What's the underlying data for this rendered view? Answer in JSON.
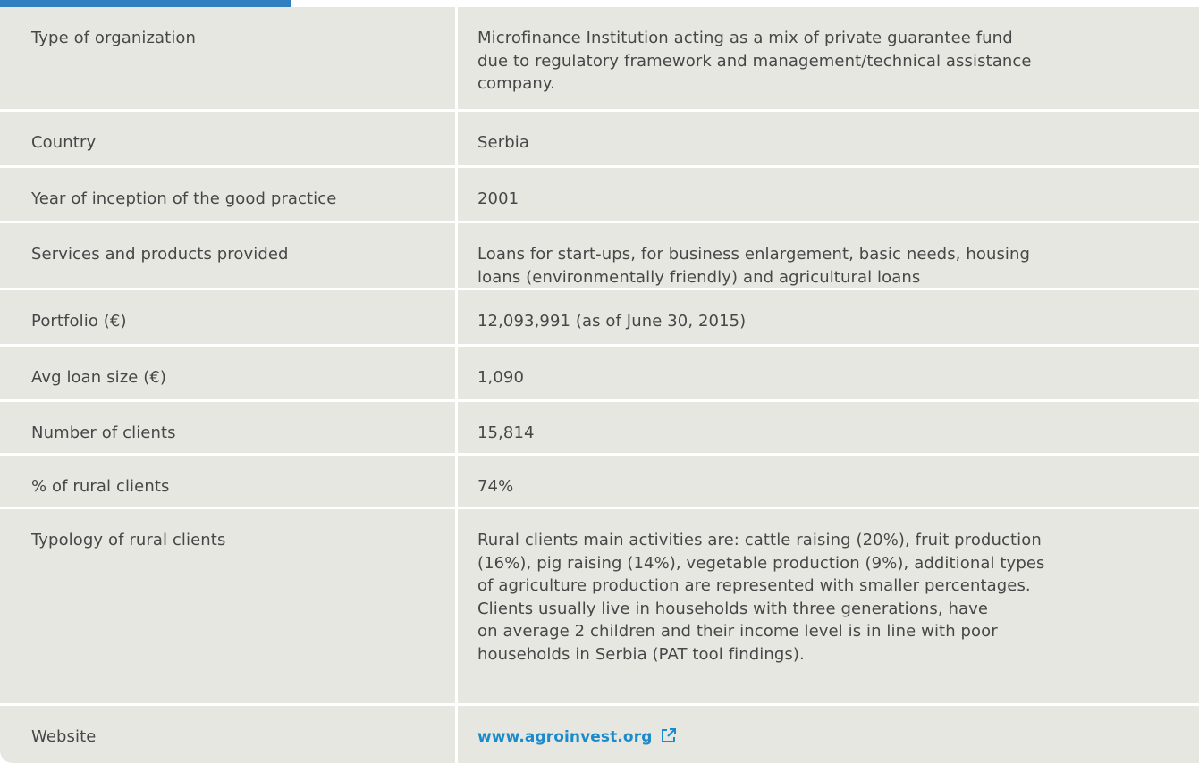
{
  "table": {
    "rows": [
      [
        "Type of organization",
        [
          "Microfinance Institution acting as a mix of private guarantee fund",
          "due to regulatory framework and management/technical assistance",
          "company."
        ]
      ],
      [
        "Country",
        [
          "Serbia"
        ]
      ],
      [
        "Year of inception of the good practice",
        [
          "2001"
        ]
      ],
      [
        "Services and products provided",
        [
          "Loans for start-ups, for business enlargement, basic needs, housing",
          "loans (environmentally friendly) and agricultural loans"
        ]
      ],
      [
        "Portfolio (€)",
        [
          "12,093,991 (as of June 30, 2015)"
        ]
      ],
      [
        "Avg loan size (€)",
        [
          "1,090"
        ]
      ],
      [
        "Number of clients",
        [
          "15,814"
        ]
      ],
      [
        "% of rural clients",
        [
          "74%"
        ]
      ],
      [
        "Typology of rural clients",
        [
          "Rural clients main activities are: cattle raising (20%), fruit production",
          "(16%), pig raising (14%), vegetable production (9%), additional types",
          "of agriculture production are represented with smaller percentages.",
          "Clients usually live in households with three generations, have",
          "on average 2 children and their income level is in line with poor",
          "households in Serbia (PAT tool findings)."
        ]
      ],
      [
        "Website",
        [
          "www.agroinvest.org"
        ]
      ]
    ]
  }
}
